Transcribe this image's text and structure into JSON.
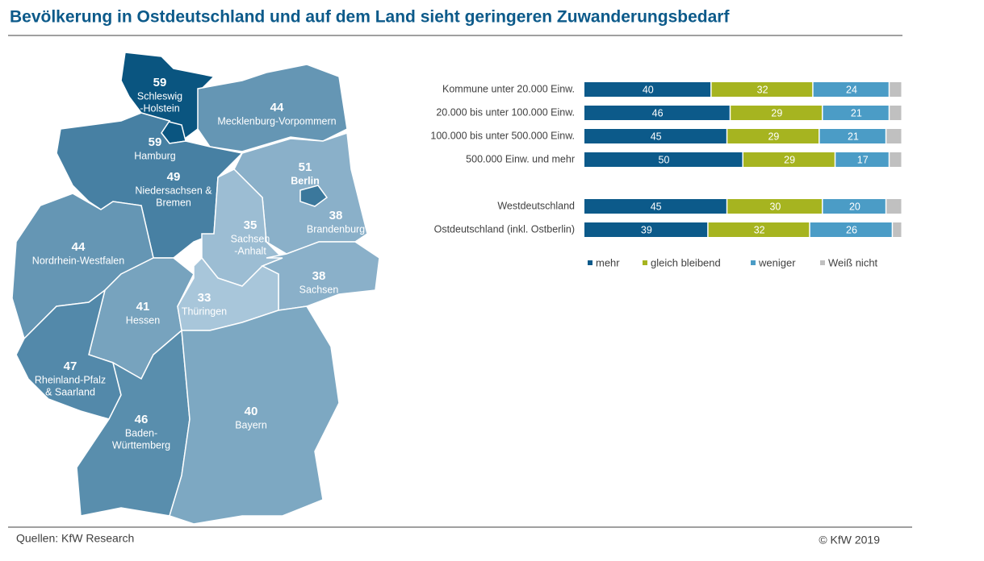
{
  "title": "Bevölkerung in Ostdeutschland und auf dem Land sieht geringeren Zuwanderungsbedarf",
  "source": "Quellen:  KfW Research",
  "copyright": "© KfW 2019",
  "chart_data": [
    {
      "type": "map",
      "regions": [
        {
          "lines": [
            "Schleswig",
            "-Holstein"
          ],
          "value": 59
        },
        {
          "lines": [
            "Hamburg"
          ],
          "value": 59
        },
        {
          "lines": [
            "Mecklenburg-Vorpommern"
          ],
          "value": 44
        },
        {
          "lines": [
            "Niedersachsen &",
            "Bremen"
          ],
          "value": 49
        },
        {
          "lines": [
            "Brandenburg"
          ],
          "value": 38
        },
        {
          "lines": [
            "Berlin"
          ],
          "value": 51
        },
        {
          "lines": [
            "Sachsen",
            "-Anhalt"
          ],
          "value": 35
        },
        {
          "lines": [
            "Nordrhein-Westfalen"
          ],
          "value": 44
        },
        {
          "lines": [
            "Sachsen"
          ],
          "value": 38
        },
        {
          "lines": [
            "Hessen"
          ],
          "value": 41
        },
        {
          "lines": [
            "Thüringen"
          ],
          "value": 33
        },
        {
          "lines": [
            "Rheinland-Pfalz",
            "& Saarland"
          ],
          "value": 47
        },
        {
          "lines": [
            "Baden-",
            "Württemberg"
          ],
          "value": 46
        },
        {
          "lines": [
            "Bayern"
          ],
          "value": 40
        }
      ]
    },
    {
      "type": "stacked-bar",
      "categories": [
        "Kommune unter 20.000 Einw.",
        "20.000 bis unter 100.000 Einw.",
        "100.000 bis unter 500.000 Einw.",
        "500.000 Einw. und mehr",
        "Westdeutschland",
        "Ostdeutschland (inkl. Ostberlin)"
      ],
      "series": [
        {
          "name": "mehr",
          "color": "#0c5a8a",
          "show_labels": true,
          "values": [
            40,
            46,
            45,
            50,
            45,
            39
          ]
        },
        {
          "name": "gleich bleibend",
          "color": "#a6b420",
          "show_labels": true,
          "values": [
            32,
            29,
            29,
            29,
            30,
            32
          ]
        },
        {
          "name": "weniger",
          "color": "#4b9cc6",
          "show_labels": true,
          "values": [
            24,
            21,
            21,
            17,
            20,
            26
          ]
        },
        {
          "name": "Weiß nicht",
          "color": "#c0c0c0",
          "show_labels": false,
          "values": [
            4,
            4,
            5,
            4,
            5,
            3
          ]
        }
      ],
      "xlim": [
        0,
        100
      ]
    }
  ]
}
